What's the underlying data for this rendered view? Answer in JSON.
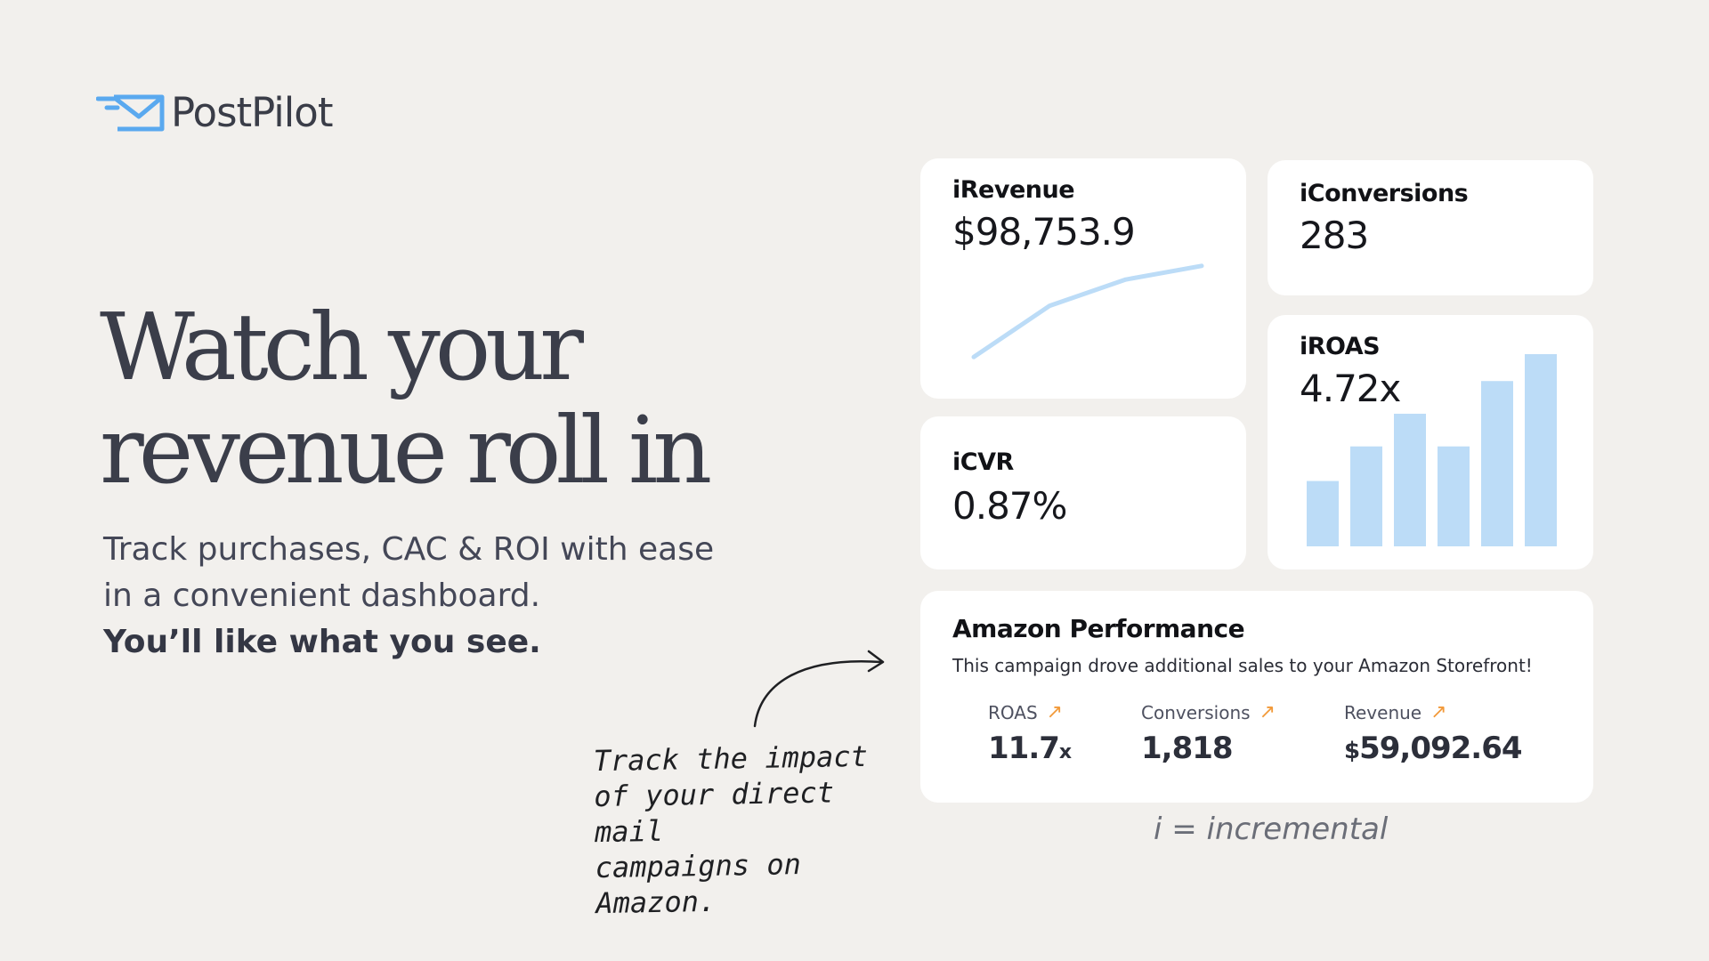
{
  "brand": {
    "name": "PostPilot",
    "logo_icon": "mail-icon",
    "accent": "#5aa9ef"
  },
  "hero": {
    "headline_line1": "Watch your",
    "headline_line2": "revenue roll in",
    "sub_line1": "Track purchases, CAC & ROI with ease",
    "sub_line2": "in a convenient dashboard.",
    "sub_strong": "You’ll like what you see."
  },
  "cards": {
    "revenue": {
      "label": "iRevenue",
      "value": "$98,753.9"
    },
    "conversions": {
      "label": "iConversions",
      "value": "283"
    },
    "cvr": {
      "label": "iCVR",
      "value": "0.87%"
    },
    "roas": {
      "label": "iROAS",
      "value": "4.72x"
    }
  },
  "chart_data": [
    {
      "type": "line",
      "values": [
        0.1,
        0.55,
        0.78,
        0.9
      ],
      "color": "#bcdcf7"
    },
    {
      "type": "bar",
      "values": [
        0.34,
        0.52,
        0.69,
        0.52,
        0.86,
        1.0
      ],
      "color": "#bcdcf7"
    }
  ],
  "amazon": {
    "title": "Amazon Performance",
    "description": "This campaign drove additional sales to your Amazon Storefront!",
    "metrics": [
      {
        "label": "ROAS",
        "value": "11.7",
        "suffix": "x",
        "prefix": ""
      },
      {
        "label": "Conversions",
        "value": "1,818",
        "suffix": "",
        "prefix": ""
      },
      {
        "label": "Revenue",
        "value": "59,092.64",
        "suffix": "",
        "prefix": "$"
      }
    ],
    "arrow_color": "#f29a3a"
  },
  "annotation": {
    "line1": "Track the impact",
    "line2": "of your direct mail",
    "line3": "campaigns on Amazon."
  },
  "footnote": "i = incremental"
}
